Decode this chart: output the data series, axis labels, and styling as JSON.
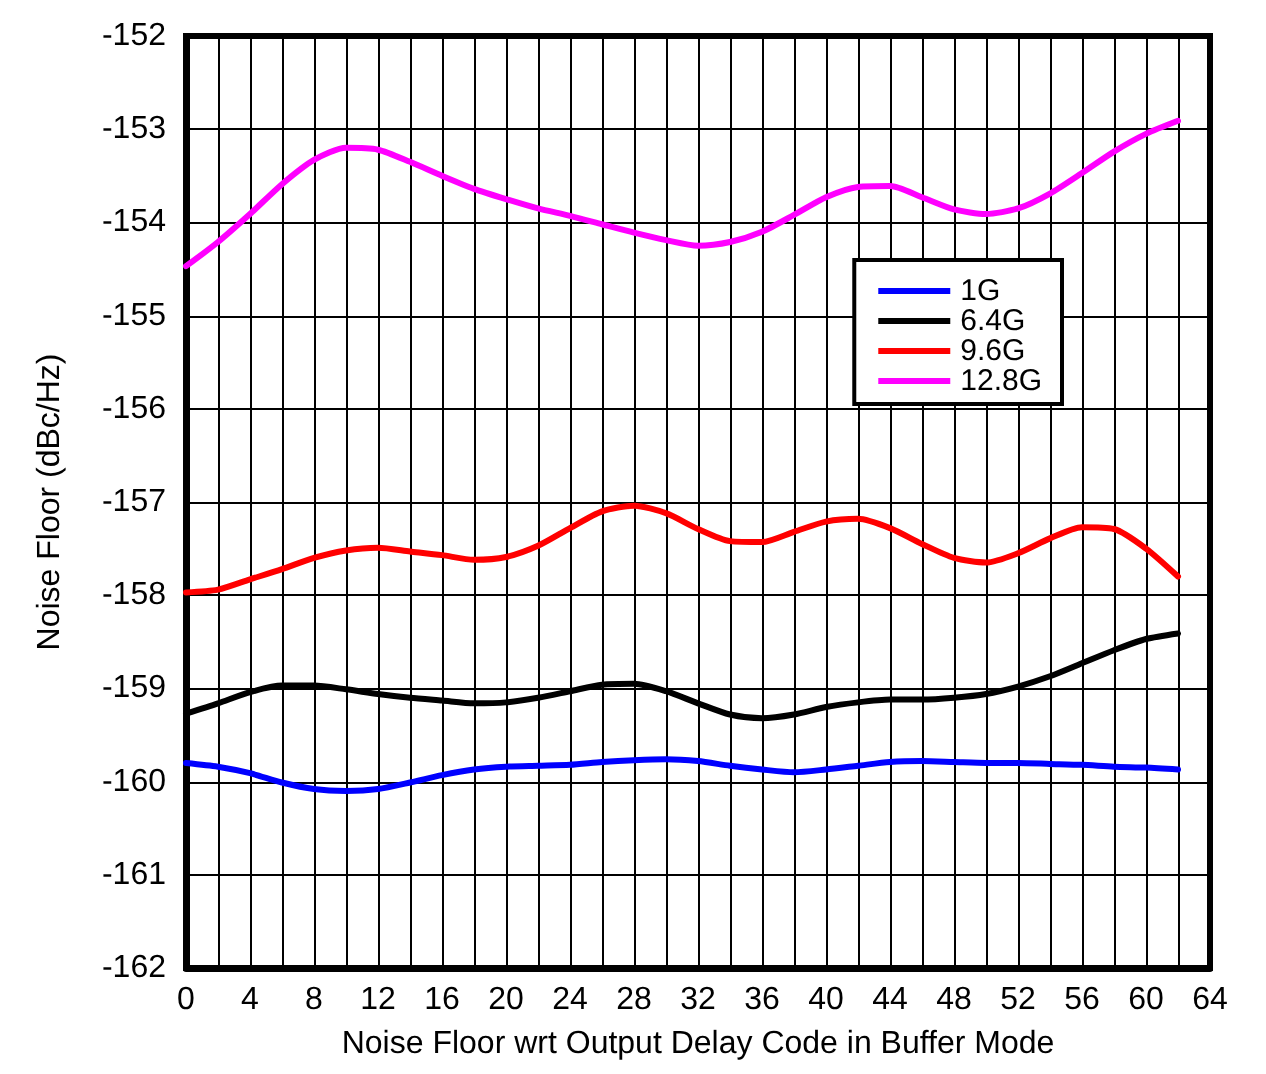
{
  "chart_data": {
    "type": "line",
    "xlabel": "Noise Floor wrt Output Delay Code in Buffer Mode",
    "ylabel": "Noise Floor (dBc/Hz)",
    "x": [
      0,
      2,
      4,
      6,
      8,
      10,
      12,
      14,
      16,
      18,
      20,
      22,
      24,
      26,
      28,
      30,
      32,
      34,
      36,
      38,
      40,
      42,
      44,
      46,
      48,
      50,
      52,
      54,
      56,
      58,
      60,
      62
    ],
    "series": [
      {
        "name": "1G",
        "color": "#0000ff",
        "values": [
          -159.8,
          -159.84,
          -159.91,
          -160.01,
          -160.08,
          -160.1,
          -160.08,
          -160.01,
          -159.93,
          -159.87,
          -159.84,
          -159.83,
          -159.82,
          -159.79,
          -159.77,
          -159.76,
          -159.78,
          -159.83,
          -159.87,
          -159.9,
          -159.87,
          -159.83,
          -159.79,
          -159.78,
          -159.79,
          -159.8,
          -159.8,
          -159.81,
          -159.82,
          -159.84,
          -159.85,
          -159.87
        ]
      },
      {
        "name": "6.4G",
        "color": "#000000",
        "values": [
          -159.27,
          -159.16,
          -159.04,
          -158.97,
          -158.97,
          -159.01,
          -159.06,
          -159.1,
          -159.13,
          -159.16,
          -159.15,
          -159.1,
          -159.03,
          -158.96,
          -158.95,
          -159.03,
          -159.16,
          -159.28,
          -159.32,
          -159.28,
          -159.2,
          -159.15,
          -159.12,
          -159.12,
          -159.1,
          -159.06,
          -158.98,
          -158.87,
          -158.73,
          -158.59,
          -158.47,
          -158.41
        ]
      },
      {
        "name": "9.6G",
        "color": "#ff0000",
        "values": [
          -157.97,
          -157.94,
          -157.83,
          -157.72,
          -157.6,
          -157.52,
          -157.49,
          -157.53,
          -157.57,
          -157.62,
          -157.59,
          -157.47,
          -157.28,
          -157.1,
          -157.04,
          -157.12,
          -157.29,
          -157.42,
          -157.43,
          -157.32,
          -157.21,
          -157.18,
          -157.28,
          -157.45,
          -157.6,
          -157.65,
          -157.55,
          -157.39,
          -157.27,
          -157.29,
          -157.5,
          -157.8
        ]
      },
      {
        "name": "12.8G",
        "color": "#ff00ff",
        "values": [
          -154.47,
          -154.21,
          -153.91,
          -153.59,
          -153.33,
          -153.2,
          -153.22,
          -153.35,
          -153.5,
          -153.64,
          -153.75,
          -153.85,
          -153.93,
          -154.02,
          -154.11,
          -154.19,
          -154.25,
          -154.21,
          -154.1,
          -153.92,
          -153.73,
          -153.62,
          -153.61,
          -153.73,
          -153.86,
          -153.91,
          -153.85,
          -153.69,
          -153.47,
          -153.24,
          -153.05,
          -152.91
        ]
      }
    ],
    "xlim": [
      0,
      64
    ],
    "xticks": [
      0,
      {
        "value": 2,
        "label": null
      },
      4,
      {
        "value": 6,
        "label": null
      },
      8,
      {
        "value": 10,
        "label": null
      },
      12,
      {
        "value": 14,
        "label": null
      },
      16,
      {
        "value": 18,
        "label": null
      },
      20,
      {
        "value": 22,
        "label": null
      },
      24,
      {
        "value": 26,
        "label": null
      },
      28,
      {
        "value": 30,
        "label": null
      },
      32,
      {
        "value": 34,
        "label": null
      },
      36,
      {
        "value": 38,
        "label": null
      },
      40,
      {
        "value": 42,
        "label": null
      },
      44,
      {
        "value": 46,
        "label": null
      },
      48,
      {
        "value": 50,
        "label": null
      },
      52,
      {
        "value": 54,
        "label": null
      },
      56,
      {
        "value": 58,
        "label": null
      },
      60,
      {
        "value": 62,
        "label": null
      },
      64
    ],
    "ylim": [
      -162,
      -152
    ],
    "yticks": [
      -162,
      -161,
      -160,
      -159,
      -158,
      -157,
      -156,
      -155,
      -154,
      -153,
      -152
    ],
    "grid": true,
    "legend": "top right",
    "marker": "none",
    "line_style": "solid"
  }
}
